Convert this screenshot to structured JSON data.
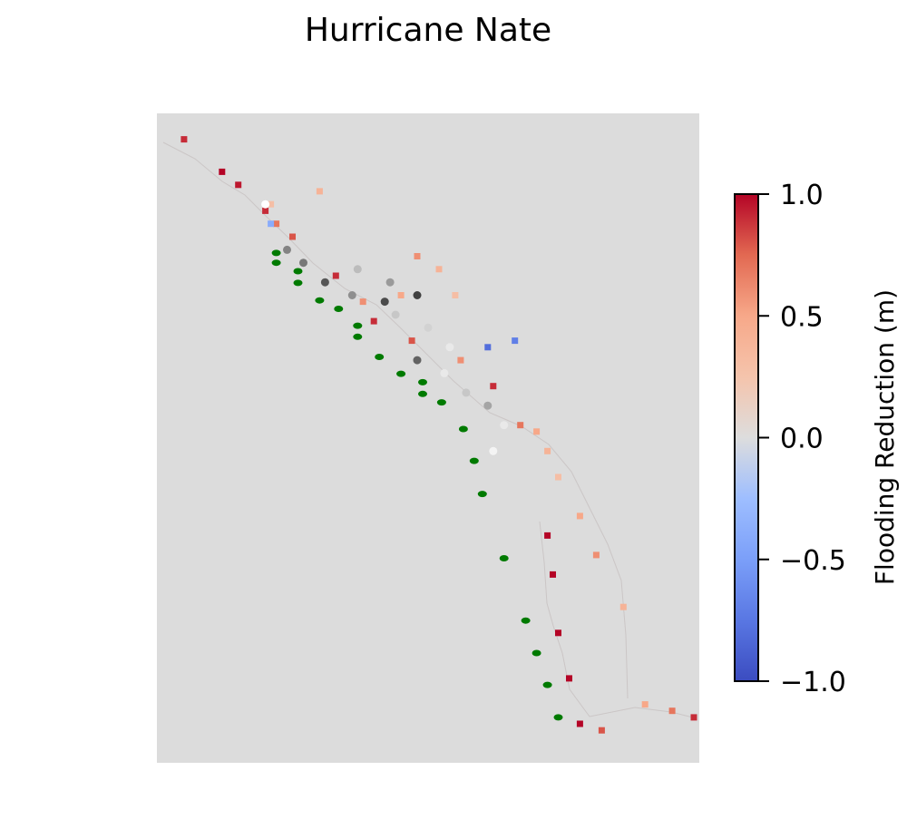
{
  "chart_data": {
    "type": "heatmap",
    "title": "Hurricane Nate",
    "colorbar": {
      "label": "Flooding Reduction (m)",
      "range": [
        -1.0,
        1.0
      ],
      "ticks": [
        1.0,
        0.5,
        0.0,
        -0.5,
        -1.0
      ],
      "tick_labels": [
        "1.0",
        "0.5",
        "0.0",
        "−0.5",
        "−1.0"
      ],
      "colormap": "coolwarm"
    },
    "map_background_color": "#dcdcdc",
    "flooding_reduction_samples": [
      {
        "x": 0.05,
        "y": 0.96,
        "v": 0.9
      },
      {
        "x": 0.12,
        "y": 0.91,
        "v": 1.0
      },
      {
        "x": 0.15,
        "y": 0.89,
        "v": 0.95
      },
      {
        "x": 0.2,
        "y": 0.85,
        "v": 0.9
      },
      {
        "x": 0.22,
        "y": 0.83,
        "v": 0.7
      },
      {
        "x": 0.25,
        "y": 0.81,
        "v": 0.8
      },
      {
        "x": 0.21,
        "y": 0.86,
        "v": 0.3
      },
      {
        "x": 0.3,
        "y": 0.88,
        "v": 0.4
      },
      {
        "x": 0.33,
        "y": 0.75,
        "v": 0.9
      },
      {
        "x": 0.38,
        "y": 0.71,
        "v": 0.6
      },
      {
        "x": 0.4,
        "y": 0.68,
        "v": 0.9
      },
      {
        "x": 0.45,
        "y": 0.72,
        "v": 0.5
      },
      {
        "x": 0.47,
        "y": 0.65,
        "v": 0.8
      },
      {
        "x": 0.48,
        "y": 0.78,
        "v": 0.6
      },
      {
        "x": 0.52,
        "y": 0.76,
        "v": 0.4
      },
      {
        "x": 0.55,
        "y": 0.72,
        "v": 0.3
      },
      {
        "x": 0.56,
        "y": 0.62,
        "v": 0.6
      },
      {
        "x": 0.62,
        "y": 0.58,
        "v": 0.9
      },
      {
        "x": 0.67,
        "y": 0.52,
        "v": 0.7
      },
      {
        "x": 0.7,
        "y": 0.51,
        "v": 0.5
      },
      {
        "x": 0.72,
        "y": 0.48,
        "v": 0.4
      },
      {
        "x": 0.74,
        "y": 0.44,
        "v": 0.3
      },
      {
        "x": 0.78,
        "y": 0.38,
        "v": 0.5
      },
      {
        "x": 0.81,
        "y": 0.32,
        "v": 0.6
      },
      {
        "x": 0.86,
        "y": 0.24,
        "v": 0.4
      },
      {
        "x": 0.72,
        "y": 0.35,
        "v": 1.0
      },
      {
        "x": 0.73,
        "y": 0.29,
        "v": 1.0
      },
      {
        "x": 0.74,
        "y": 0.2,
        "v": 1.0
      },
      {
        "x": 0.76,
        "y": 0.13,
        "v": 1.0
      },
      {
        "x": 0.78,
        "y": 0.06,
        "v": 1.0
      },
      {
        "x": 0.82,
        "y": 0.05,
        "v": 0.8
      },
      {
        "x": 0.9,
        "y": 0.09,
        "v": 0.5
      },
      {
        "x": 0.95,
        "y": 0.08,
        "v": 0.7
      },
      {
        "x": 0.99,
        "y": 0.07,
        "v": 0.9
      },
      {
        "x": 0.61,
        "y": 0.64,
        "v": -0.8
      },
      {
        "x": 0.66,
        "y": 0.65,
        "v": -0.7
      },
      {
        "x": 0.21,
        "y": 0.83,
        "v": -0.4
      }
    ],
    "track_points": [
      {
        "x": 0.2,
        "y": 0.86,
        "shade": 0.0
      },
      {
        "x": 0.24,
        "y": 0.79,
        "shade": 0.55
      },
      {
        "x": 0.27,
        "y": 0.77,
        "shade": 0.6
      },
      {
        "x": 0.31,
        "y": 0.74,
        "shade": 0.75
      },
      {
        "x": 0.36,
        "y": 0.72,
        "shade": 0.5
      },
      {
        "x": 0.42,
        "y": 0.71,
        "shade": 0.8
      },
      {
        "x": 0.37,
        "y": 0.76,
        "shade": 0.3
      },
      {
        "x": 0.43,
        "y": 0.74,
        "shade": 0.45
      },
      {
        "x": 0.48,
        "y": 0.72,
        "shade": 0.85
      },
      {
        "x": 0.44,
        "y": 0.69,
        "shade": 0.25
      },
      {
        "x": 0.5,
        "y": 0.67,
        "shade": 0.2
      },
      {
        "x": 0.54,
        "y": 0.64,
        "shade": 0.1
      },
      {
        "x": 0.48,
        "y": 0.62,
        "shade": 0.7
      },
      {
        "x": 0.53,
        "y": 0.6,
        "shade": 0.1
      },
      {
        "x": 0.57,
        "y": 0.57,
        "shade": 0.25
      },
      {
        "x": 0.61,
        "y": 0.55,
        "shade": 0.4
      },
      {
        "x": 0.64,
        "y": 0.52,
        "shade": 0.1
      },
      {
        "x": 0.62,
        "y": 0.48,
        "shade": 0.05
      }
    ],
    "observation_points": [
      {
        "x": 0.22,
        "y": 0.785
      },
      {
        "x": 0.22,
        "y": 0.77
      },
      {
        "x": 0.26,
        "y": 0.757
      },
      {
        "x": 0.26,
        "y": 0.739
      },
      {
        "x": 0.3,
        "y": 0.712
      },
      {
        "x": 0.335,
        "y": 0.699
      },
      {
        "x": 0.37,
        "y": 0.673
      },
      {
        "x": 0.37,
        "y": 0.656
      },
      {
        "x": 0.41,
        "y": 0.625
      },
      {
        "x": 0.45,
        "y": 0.599
      },
      {
        "x": 0.49,
        "y": 0.586
      },
      {
        "x": 0.49,
        "y": 0.568
      },
      {
        "x": 0.525,
        "y": 0.555
      },
      {
        "x": 0.565,
        "y": 0.514
      },
      {
        "x": 0.585,
        "y": 0.465
      },
      {
        "x": 0.6,
        "y": 0.414
      },
      {
        "x": 0.64,
        "y": 0.315
      },
      {
        "x": 0.68,
        "y": 0.219
      },
      {
        "x": 0.7,
        "y": 0.169
      },
      {
        "x": 0.72,
        "y": 0.12
      },
      {
        "x": 0.74,
        "y": 0.07
      }
    ],
    "colors": {
      "observation_points": "#007a00",
      "colorbar_low": "#3b4cc0",
      "colorbar_mid": "#dddddd",
      "colorbar_high": "#b40426"
    }
  }
}
